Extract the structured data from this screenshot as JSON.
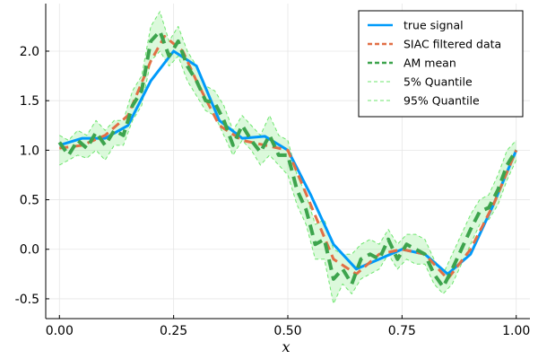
{
  "chart_data": {
    "type": "line",
    "title": "",
    "xlabel": "x",
    "ylabel": "",
    "xlim": [
      -0.03,
      1.03
    ],
    "ylim": [
      -0.7,
      2.48
    ],
    "grid": true,
    "legend_position": "top-right",
    "x_ticks": [
      0.0,
      0.25,
      0.5,
      0.75,
      1.0
    ],
    "x_tick_labels": [
      "0.00",
      "0.25",
      "0.50",
      "0.75",
      "1.00"
    ],
    "y_ticks": [
      -0.5,
      0.0,
      0.5,
      1.0,
      1.5,
      2.0
    ],
    "y_tick_labels": [
      "-0.5",
      "0.0",
      "0.5",
      "1.0",
      "1.5",
      "2.0"
    ],
    "series": [
      {
        "name": "true signal",
        "color": "#009AFA",
        "style": "solid",
        "x": [
          0.0,
          0.05,
          0.1,
          0.15,
          0.2,
          0.25,
          0.3,
          0.35,
          0.4,
          0.45,
          0.5,
          0.55,
          0.6,
          0.65,
          0.7,
          0.75,
          0.8,
          0.85,
          0.9,
          0.95,
          1.0
        ],
        "values": [
          1.05,
          1.12,
          1.12,
          1.25,
          1.7,
          2.0,
          1.85,
          1.3,
          1.12,
          1.14,
          1.0,
          0.55,
          0.05,
          -0.2,
          -0.1,
          0.0,
          -0.05,
          -0.25,
          -0.05,
          0.45,
          1.0
        ]
      },
      {
        "name": "SIAC filtered data",
        "color": "#E26F46",
        "style": "dashed",
        "x": [
          0.0,
          0.05,
          0.1,
          0.15,
          0.2,
          0.23,
          0.27,
          0.3,
          0.35,
          0.4,
          0.45,
          0.5,
          0.55,
          0.6,
          0.65,
          0.7,
          0.75,
          0.8,
          0.85,
          0.9,
          0.95,
          1.0
        ],
        "values": [
          1.02,
          1.05,
          1.15,
          1.35,
          1.9,
          2.15,
          2.0,
          1.7,
          1.25,
          1.1,
          1.05,
          1.0,
          0.45,
          -0.1,
          -0.25,
          -0.05,
          0.0,
          -0.05,
          -0.3,
          0.0,
          0.45,
          1.0
        ]
      },
      {
        "name": "AM mean",
        "color": "#3DA44D",
        "style": "dashed",
        "x": [
          0.0,
          0.02,
          0.04,
          0.06,
          0.08,
          0.1,
          0.12,
          0.14,
          0.16,
          0.18,
          0.2,
          0.22,
          0.24,
          0.26,
          0.28,
          0.3,
          0.32,
          0.34,
          0.36,
          0.38,
          0.4,
          0.42,
          0.44,
          0.46,
          0.48,
          0.5,
          0.52,
          0.54,
          0.56,
          0.58,
          0.6,
          0.62,
          0.64,
          0.66,
          0.68,
          0.7,
          0.72,
          0.74,
          0.76,
          0.78,
          0.8,
          0.82,
          0.84,
          0.86,
          0.88,
          0.9,
          0.92,
          0.94,
          0.96,
          0.98,
          1.0
        ],
        "values": [
          1.08,
          0.95,
          1.1,
          1.02,
          1.18,
          1.05,
          1.2,
          1.15,
          1.45,
          1.6,
          2.1,
          2.2,
          1.95,
          2.1,
          1.85,
          1.7,
          1.5,
          1.48,
          1.3,
          1.05,
          1.25,
          1.1,
          0.98,
          1.15,
          0.95,
          0.95,
          0.6,
          0.4,
          0.05,
          0.1,
          -0.3,
          -0.2,
          -0.35,
          -0.1,
          -0.05,
          -0.1,
          0.1,
          -0.1,
          0.05,
          0.0,
          -0.05,
          -0.25,
          -0.38,
          -0.2,
          0.0,
          0.2,
          0.38,
          0.42,
          0.6,
          0.85,
          1.0
        ]
      },
      {
        "name": "5% Quantile",
        "color": "#6EE66E",
        "style": "dashed",
        "x": [
          0.0,
          0.02,
          0.04,
          0.06,
          0.08,
          0.1,
          0.12,
          0.14,
          0.16,
          0.18,
          0.2,
          0.22,
          0.24,
          0.26,
          0.28,
          0.3,
          0.32,
          0.34,
          0.36,
          0.38,
          0.4,
          0.42,
          0.44,
          0.46,
          0.48,
          0.5,
          0.52,
          0.54,
          0.56,
          0.58,
          0.6,
          0.62,
          0.64,
          0.66,
          0.68,
          0.7,
          0.72,
          0.74,
          0.76,
          0.78,
          0.8,
          0.82,
          0.84,
          0.86,
          0.88,
          0.9,
          0.92,
          0.94,
          0.96,
          0.98,
          1.0
        ],
        "values": [
          0.85,
          0.9,
          0.95,
          0.92,
          1.0,
          0.9,
          1.05,
          1.05,
          1.3,
          1.45,
          1.9,
          2.0,
          1.85,
          1.95,
          1.7,
          1.55,
          1.4,
          1.35,
          1.15,
          0.95,
          1.1,
          1.0,
          0.85,
          0.95,
          0.85,
          0.75,
          0.45,
          0.25,
          -0.1,
          -0.1,
          -0.55,
          -0.35,
          -0.45,
          -0.3,
          -0.25,
          -0.2,
          -0.05,
          -0.2,
          -0.1,
          -0.15,
          -0.15,
          -0.35,
          -0.45,
          -0.35,
          -0.15,
          0.05,
          0.25,
          0.3,
          0.45,
          0.7,
          0.9
        ]
      },
      {
        "name": "95% Quantile",
        "color": "#6EE66E",
        "style": "dashed",
        "x": [
          0.0,
          0.02,
          0.04,
          0.06,
          0.08,
          0.1,
          0.12,
          0.14,
          0.16,
          0.18,
          0.2,
          0.22,
          0.24,
          0.26,
          0.28,
          0.3,
          0.32,
          0.34,
          0.36,
          0.38,
          0.4,
          0.42,
          0.44,
          0.46,
          0.48,
          0.5,
          0.52,
          0.54,
          0.56,
          0.58,
          0.6,
          0.62,
          0.64,
          0.66,
          0.68,
          0.7,
          0.72,
          0.74,
          0.76,
          0.78,
          0.8,
          0.82,
          0.84,
          0.86,
          0.88,
          0.9,
          0.92,
          0.94,
          0.96,
          0.98,
          1.0
        ],
        "values": [
          1.15,
          1.1,
          1.2,
          1.15,
          1.3,
          1.2,
          1.3,
          1.3,
          1.6,
          1.75,
          2.25,
          2.4,
          2.1,
          2.25,
          2.0,
          1.85,
          1.65,
          1.6,
          1.45,
          1.2,
          1.35,
          1.25,
          1.15,
          1.35,
          1.15,
          1.1,
          0.75,
          0.55,
          0.25,
          0.3,
          0.0,
          -0.05,
          -0.05,
          0.05,
          0.1,
          0.05,
          0.2,
          0.05,
          0.15,
          0.15,
          0.1,
          -0.1,
          -0.25,
          -0.05,
          0.15,
          0.35,
          0.5,
          0.55,
          0.75,
          1.0,
          1.1
        ]
      }
    ]
  }
}
